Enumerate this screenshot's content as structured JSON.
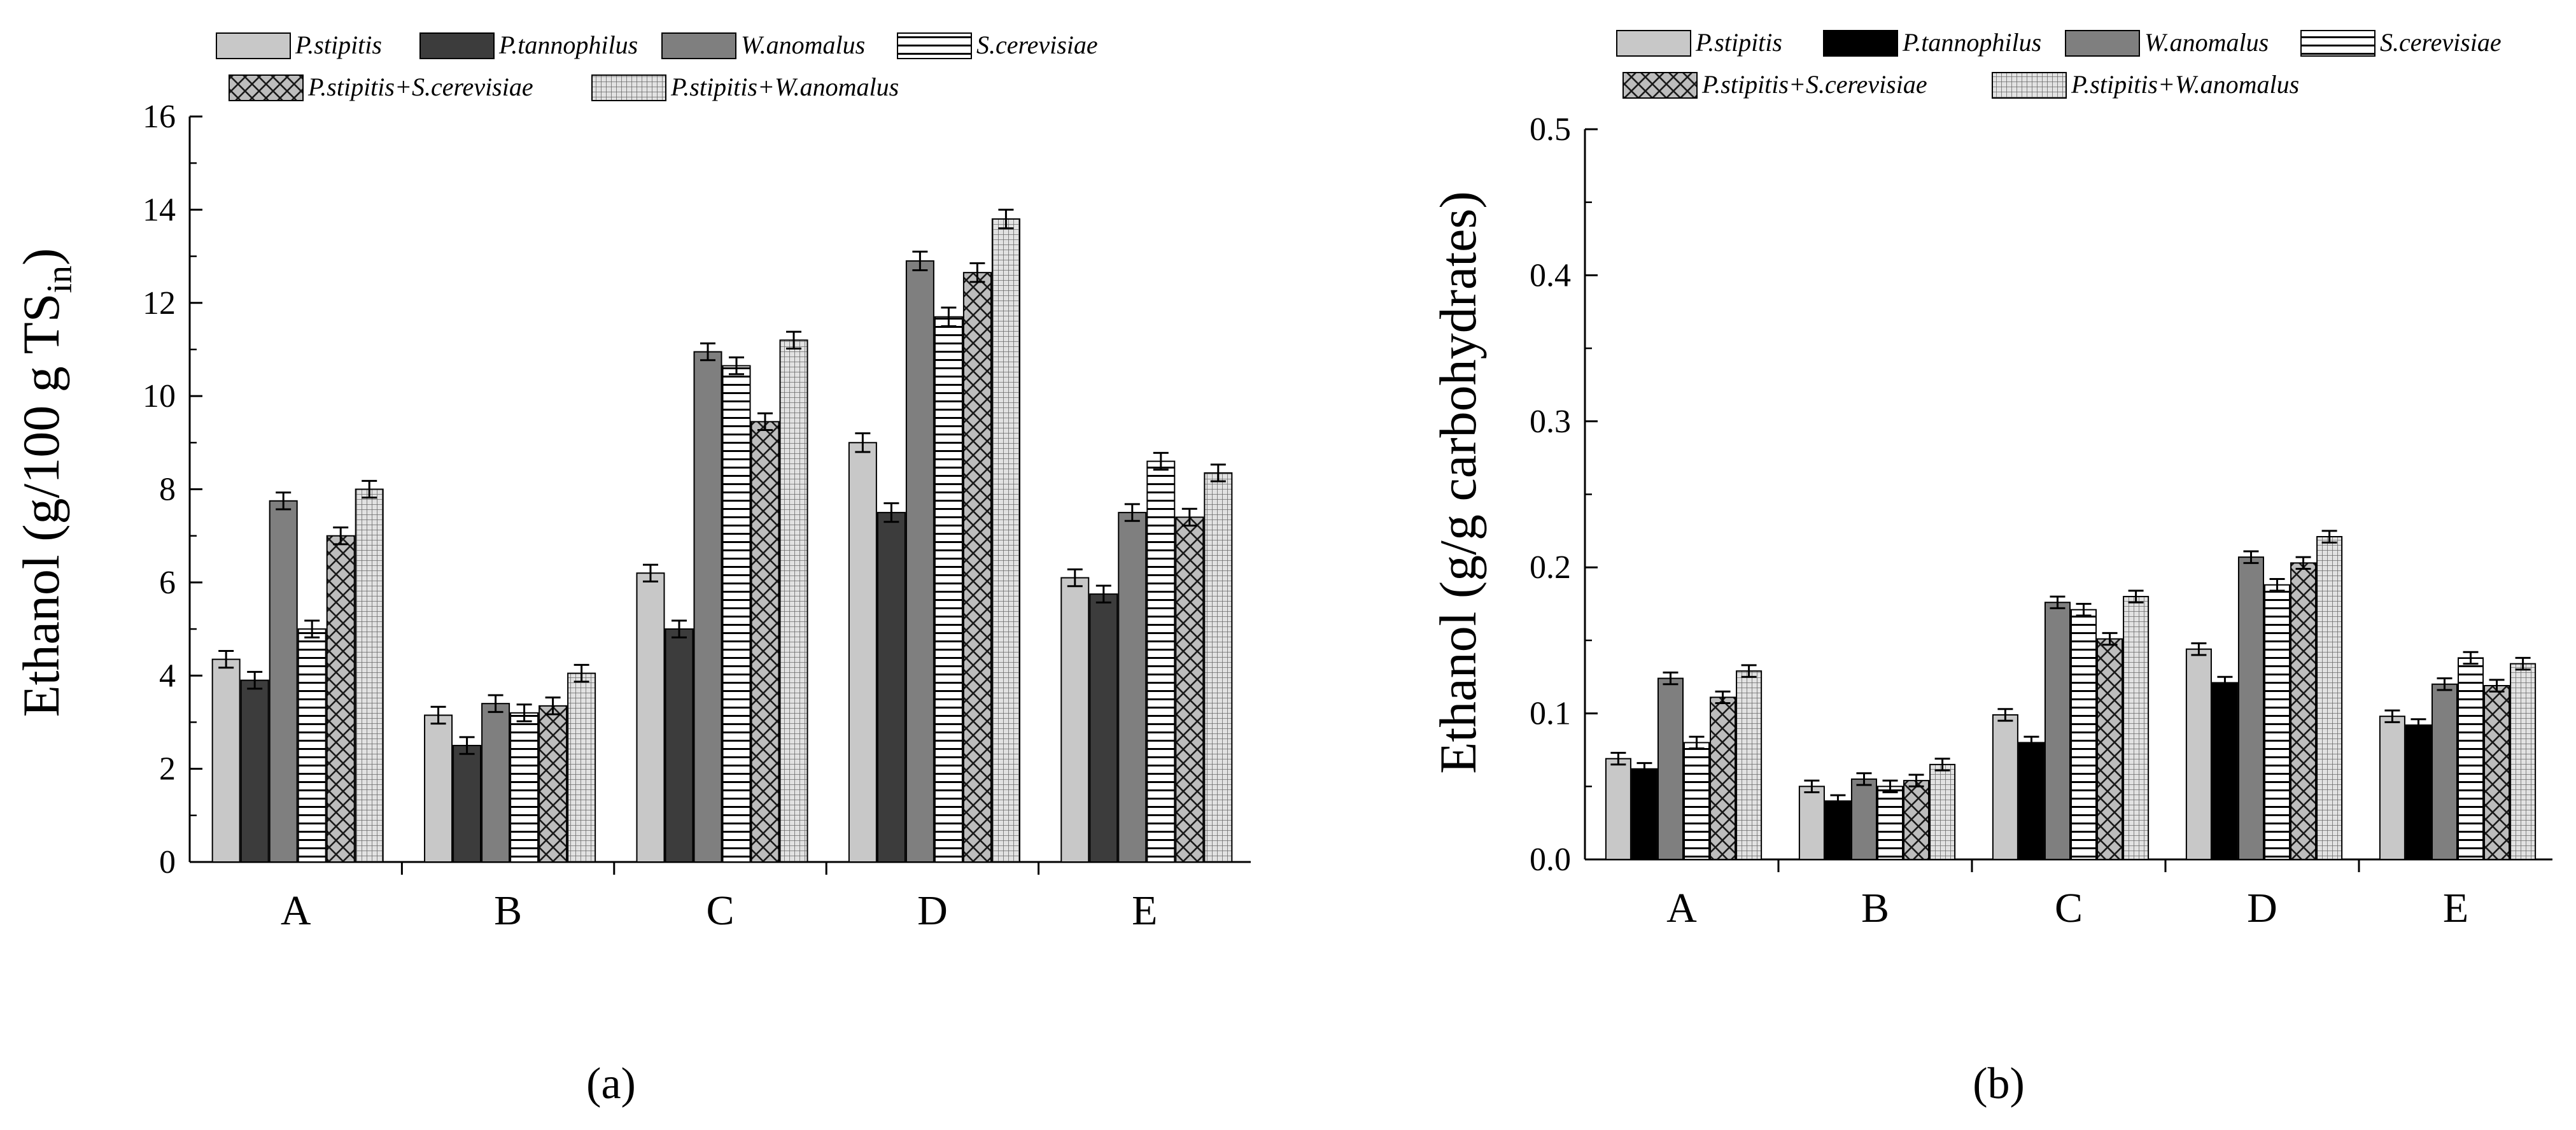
{
  "chart_data": [
    {
      "type": "bar",
      "panel": "a",
      "panel_label": "(a)",
      "ylabel": "Ethanol (g/100 g TS",
      "ylabel_sub": "in",
      "ylabel_tail": ")",
      "xlabel": "",
      "categories": [
        "A",
        "B",
        "C",
        "D",
        "E"
      ],
      "ylim": [
        0,
        16
      ],
      "yticks": [
        0,
        2,
        4,
        6,
        8,
        10,
        12,
        14,
        16
      ],
      "ytick_labels": [
        "0",
        "2",
        "4",
        "6",
        "8",
        "10",
        "12",
        "14",
        "16"
      ],
      "series": [
        {
          "name": "P.stipitis",
          "fill": "light",
          "color": "#c8c8c8",
          "values": [
            4.35,
            3.15,
            6.2,
            9.0,
            6.1
          ],
          "errors": [
            0.18,
            0.18,
            0.18,
            0.2,
            0.18
          ]
        },
        {
          "name": "P.tannophilus",
          "fill": "dark",
          "color": "#3c3c3c",
          "values": [
            3.9,
            2.5,
            5.0,
            7.5,
            5.75
          ],
          "errors": [
            0.18,
            0.18,
            0.18,
            0.2,
            0.18
          ]
        },
        {
          "name": "W.anomalus",
          "fill": "medium",
          "color": "#7f7f7f",
          "values": [
            7.75,
            3.4,
            10.95,
            12.9,
            7.5
          ],
          "errors": [
            0.18,
            0.18,
            0.18,
            0.2,
            0.18
          ]
        },
        {
          "name": "S.cerevisiae",
          "fill": "hlines",
          "color": "#ffffff",
          "values": [
            5.0,
            3.2,
            10.65,
            11.7,
            8.6
          ],
          "errors": [
            0.18,
            0.18,
            0.18,
            0.2,
            0.18
          ]
        },
        {
          "name": "P.stipitis+S.cerevisiae",
          "fill": "crosshatch",
          "color": "#bdbdbd",
          "values": [
            7.0,
            3.35,
            9.45,
            12.65,
            7.4
          ],
          "errors": [
            0.18,
            0.18,
            0.18,
            0.2,
            0.18
          ]
        },
        {
          "name": "P.stipitis+W.anomalus",
          "fill": "grid",
          "color": "#d8d8d8",
          "values": [
            8.0,
            4.05,
            11.2,
            13.8,
            8.35
          ],
          "errors": [
            0.18,
            0.18,
            0.18,
            0.2,
            0.18
          ]
        }
      ]
    },
    {
      "type": "bar",
      "panel": "b",
      "panel_label": "(b)",
      "ylabel": "Ethanol (g/g carbohydrates)",
      "ylabel_sub": "",
      "ylabel_tail": "",
      "xlabel": "",
      "categories": [
        "A",
        "B",
        "C",
        "D",
        "E"
      ],
      "ylim": [
        0,
        0.5
      ],
      "yticks": [
        0,
        0.1,
        0.2,
        0.3,
        0.4,
        0.5
      ],
      "ytick_labels": [
        "0.0",
        "0.1",
        "0.2",
        "0.3",
        "0.4",
        "0.5"
      ],
      "series": [
        {
          "name": "P.stipitis",
          "fill": "light",
          "color": "#c8c8c8",
          "values": [
            0.069,
            0.05,
            0.099,
            0.144,
            0.098
          ],
          "errors": [
            0.004,
            0.004,
            0.004,
            0.004,
            0.004
          ]
        },
        {
          "name": "P.tannophilus",
          "fill": "solid-black",
          "color": "#000000",
          "values": [
            0.062,
            0.04,
            0.08,
            0.121,
            0.092
          ],
          "errors": [
            0.004,
            0.004,
            0.004,
            0.004,
            0.004
          ]
        },
        {
          "name": "W.anomalus",
          "fill": "medium",
          "color": "#7f7f7f",
          "values": [
            0.124,
            0.055,
            0.176,
            0.207,
            0.12
          ],
          "errors": [
            0.004,
            0.004,
            0.004,
            0.004,
            0.004
          ]
        },
        {
          "name": "S.cerevisiae",
          "fill": "hlines",
          "color": "#ffffff",
          "values": [
            0.08,
            0.05,
            0.171,
            0.188,
            0.138
          ],
          "errors": [
            0.004,
            0.004,
            0.004,
            0.004,
            0.004
          ]
        },
        {
          "name": "P.stipitis+S.cerevisiae",
          "fill": "crosshatch",
          "color": "#bdbdbd",
          "values": [
            0.111,
            0.054,
            0.151,
            0.203,
            0.119
          ],
          "errors": [
            0.004,
            0.004,
            0.004,
            0.004,
            0.004
          ]
        },
        {
          "name": "P.stipitis+W.anomalus",
          "fill": "grid",
          "color": "#d8d8d8",
          "values": [
            0.129,
            0.065,
            0.18,
            0.221,
            0.134
          ],
          "errors": [
            0.004,
            0.004,
            0.004,
            0.004,
            0.004
          ]
        }
      ]
    }
  ]
}
